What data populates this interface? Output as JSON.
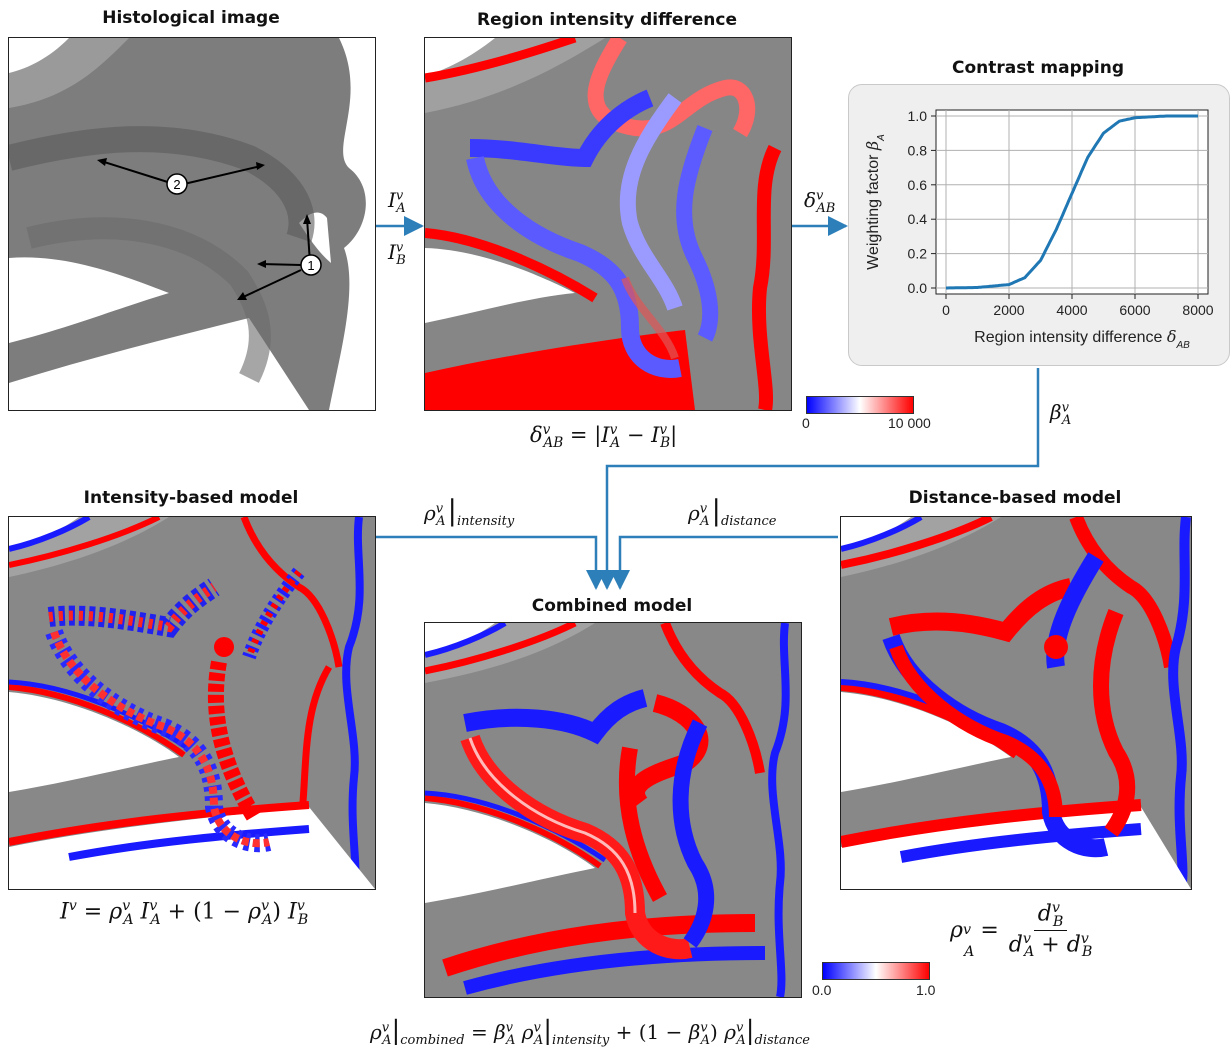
{
  "titles": {
    "histological": "Histological image",
    "region_diff": "Region intensity difference",
    "contrast": "Contrast mapping",
    "intensity_model": "Intensity-based model",
    "combined_model": "Combined model",
    "distance_model": "Distance-based model"
  },
  "markers": {
    "one": "1",
    "two": "2"
  },
  "labels": {
    "IA": "I",
    "IA_sup": "v",
    "IA_sub": "A",
    "IB": "I",
    "IB_sup": "v",
    "IB_sub": "B",
    "delta": "δ",
    "delta_sup": "v",
    "delta_sub": "AB",
    "beta": "β",
    "beta_sup": "v",
    "beta_sub": "A",
    "rho": "ρ",
    "rho_sup": "v",
    "rho_sub": "A",
    "intensity": "intensity",
    "distance": "distance",
    "combined": "combined"
  },
  "formulas": {
    "delta_eq": "δ",
    "delta_eq_rest": " = |I",
    "intensity_eq": "I",
    "distance_eq_num": "d",
    "distance_eq_den": "d"
  },
  "colorbar_diff": {
    "min": "0",
    "max": "10 000"
  },
  "colorbar_model": {
    "min": "0.0",
    "max": "1.0"
  },
  "colors": {
    "red": "#ff0000",
    "blue": "#1a1aff",
    "curve": "#1f77b4",
    "arrow": "#2c7fb8"
  },
  "chart_data": {
    "type": "line",
    "title": "Contrast mapping",
    "xlabel": "Region intensity difference δ^v_AB",
    "ylabel": "Weighting factor β^v_A",
    "xlim": [
      0,
      8000
    ],
    "ylim": [
      0,
      1.0
    ],
    "xticks": [
      "0",
      "2000",
      "4000",
      "6000",
      "8000"
    ],
    "yticks": [
      "0.0",
      "0.2",
      "0.4",
      "0.6",
      "0.8",
      "1.0"
    ],
    "grid": true,
    "series": [
      {
        "x": [
          0,
          1000,
          2000,
          2500,
          3000,
          3500,
          4000,
          4500,
          5000,
          5500,
          6000,
          7000,
          8000
        ],
        "y": [
          0.0,
          0.003,
          0.02,
          0.06,
          0.16,
          0.34,
          0.55,
          0.76,
          0.9,
          0.97,
          0.99,
          1.0,
          1.0
        ]
      }
    ]
  }
}
